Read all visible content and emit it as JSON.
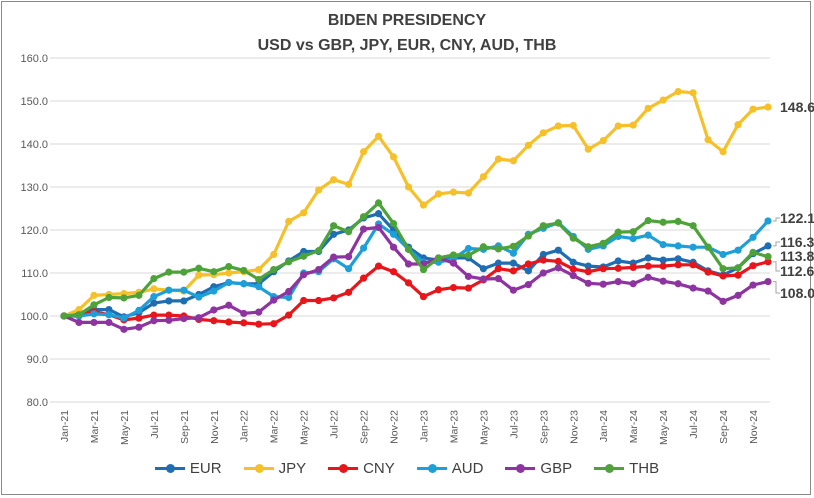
{
  "chart_data": {
    "type": "line",
    "title": "BIDEN PRESIDENCY",
    "subtitle": "USD vs GBP, JPY, EUR, CNY, AUD, THB",
    "xlabel": "",
    "ylabel": "",
    "ylim": [
      80,
      160
    ],
    "yticks": [
      "80.0",
      "90.0",
      "100.0",
      "110.0",
      "120.0",
      "130.0",
      "140.0",
      "150.0",
      "160.0"
    ],
    "grid": true,
    "legend_position": "bottom",
    "x": [
      "Jan-21",
      "Feb-21",
      "Mar-21",
      "Apr-21",
      "May-21",
      "Jun-21",
      "Jul-21",
      "Aug-21",
      "Sep-21",
      "Oct-21",
      "Nov-21",
      "Dec-21",
      "Jan-22",
      "Feb-22",
      "Mar-22",
      "Apr-22",
      "May-22",
      "Jun-22",
      "Jul-22",
      "Aug-22",
      "Sep-22",
      "Oct-22",
      "Nov-22",
      "Dec-22",
      "Jan-23",
      "Feb-23",
      "Mar-23",
      "Apr-23",
      "May-23",
      "Jun-23",
      "Jul-23",
      "Aug-23",
      "Sep-23",
      "Oct-23",
      "Nov-23",
      "Dec-23",
      "Jan-24",
      "Feb-24",
      "Mar-24",
      "Apr-24",
      "May-24",
      "Jun-24",
      "Jul-24",
      "Aug-24",
      "Sep-24",
      "Oct-24",
      "Nov-24",
      "Dec-24"
    ],
    "xtick_labels": [
      "Jan-21",
      "Mar-21",
      "May-21",
      "Jul-21",
      "Sep-21",
      "Nov-21",
      "Jan-22",
      "Mar-22",
      "May-22",
      "Jul-22",
      "Sep-22",
      "Nov-22",
      "Jan-23",
      "Mar-23",
      "May-23",
      "Jul-23",
      "Sep-23",
      "Nov-23",
      "Jan-24",
      "Mar-24",
      "May-24",
      "Jul-24",
      "Sep-24",
      "Nov-24"
    ],
    "series": [
      {
        "name": "EUR",
        "color": "#1f6db3",
        "values": [
          100,
          100.5,
          101.5,
          101.5,
          99.8,
          100.8,
          103,
          103.5,
          103.5,
          105,
          106.8,
          107.8,
          107.5,
          107.5,
          110.3,
          112.8,
          115,
          115,
          119,
          120,
          122.8,
          123.8,
          120,
          116,
          113.5,
          113,
          113.5,
          113.5,
          111,
          112.3,
          112.3,
          110.5,
          114.3,
          115.3,
          112.5,
          111.6,
          111.4,
          112.8,
          112.3,
          113.5,
          113,
          113.3,
          112.5,
          110.5,
          109.5,
          111.2,
          114.5,
          116.3
        ]
      },
      {
        "name": "JPY",
        "color": "#f5c02a",
        "values": [
          100,
          101.5,
          104.8,
          105,
          105.2,
          105.5,
          106.3,
          106,
          105.8,
          109.5,
          109.6,
          110,
          110.3,
          110.8,
          114.3,
          122,
          124,
          129.3,
          131.7,
          130.6,
          138.2,
          141.8,
          137,
          130,
          125.8,
          128.4,
          128.8,
          128.6,
          132.4,
          136.5,
          136.1,
          139.7,
          142.6,
          144.2,
          144.3,
          138.8,
          140.8,
          144.2,
          144.4,
          148.3,
          150.2,
          152.2,
          151.9,
          141,
          138.2,
          144.5,
          148.1,
          148.6
        ]
      },
      {
        "name": "CNY",
        "color": "#e8161b",
        "values": [
          100,
          100,
          101,
          100.3,
          99.1,
          99.5,
          100.2,
          100.2,
          100,
          99.2,
          98.9,
          98.6,
          98.4,
          98.1,
          98.2,
          100.2,
          103.6,
          103.6,
          104.2,
          105.5,
          108.8,
          111.6,
          110.3,
          107.7,
          104.5,
          106.1,
          106.6,
          106.5,
          108.4,
          111,
          110.5,
          112.1,
          113,
          112.7,
          110.9,
          110.3,
          111,
          111.1,
          111.3,
          111.6,
          111.6,
          111.9,
          111.9,
          110.2,
          109.3,
          109.5,
          111.7,
          112.6
        ]
      },
      {
        "name": "AUD",
        "color": "#1f9fd8",
        "values": [
          100,
          100,
          100.5,
          100.3,
          99.5,
          101.3,
          104.5,
          106,
          106,
          104.4,
          105.8,
          107.8,
          107.5,
          106.8,
          104.5,
          104.3,
          110,
          110.3,
          113.3,
          111,
          115.8,
          121.4,
          119,
          115.5,
          112.5,
          112.5,
          113.3,
          115.7,
          115.5,
          116.3,
          114.6,
          119,
          120.4,
          121.7,
          118.5,
          115.5,
          116.3,
          118.5,
          118,
          118.8,
          116.6,
          116.3,
          116,
          116,
          114.3,
          115.3,
          118.3,
          122.1
        ]
      },
      {
        "name": "GBP",
        "color": "#8e34a0",
        "values": [
          100,
          98.5,
          98.5,
          98.5,
          96.9,
          97.4,
          98.9,
          99,
          99.4,
          99.6,
          101.4,
          102.5,
          100.6,
          100.9,
          103.7,
          105.7,
          109.6,
          110.8,
          113.7,
          113.8,
          120.2,
          120.6,
          116,
          112.1,
          112.1,
          113.5,
          112.3,
          109.2,
          108.6,
          108.7,
          106,
          107.3,
          110,
          111.2,
          109.4,
          107.6,
          107.4,
          108,
          107.5,
          109,
          108.1,
          107.5,
          106.5,
          105.8,
          103.4,
          104.8,
          107.2,
          108.0
        ]
      },
      {
        "name": "THB",
        "color": "#4ea23a",
        "values": [
          100,
          100.3,
          102.6,
          104.3,
          104.2,
          104.8,
          108.7,
          110.2,
          110.2,
          111.1,
          110.3,
          111.5,
          110.6,
          108.5,
          110.8,
          112.6,
          113.9,
          115.2,
          121,
          119.6,
          123.1,
          126.3,
          121.5,
          115.5,
          110.8,
          113.5,
          114.2,
          114.1,
          116.1,
          115.6,
          116.2,
          118.6,
          121,
          121.6,
          118.1,
          116.1,
          116.9,
          119.5,
          119.6,
          122.2,
          121.8,
          122,
          121,
          116,
          111,
          111.2,
          114.8,
          113.8
        ]
      }
    ],
    "end_labels": [
      {
        "series": "JPY",
        "text": "148.6"
      },
      {
        "series": "AUD",
        "text": "122.1"
      },
      {
        "series": "EUR",
        "text": "116.3"
      },
      {
        "series": "THB",
        "text": "113.8"
      },
      {
        "series": "CNY",
        "text": "112.6"
      },
      {
        "series": "GBP",
        "text": "108.0"
      }
    ]
  }
}
